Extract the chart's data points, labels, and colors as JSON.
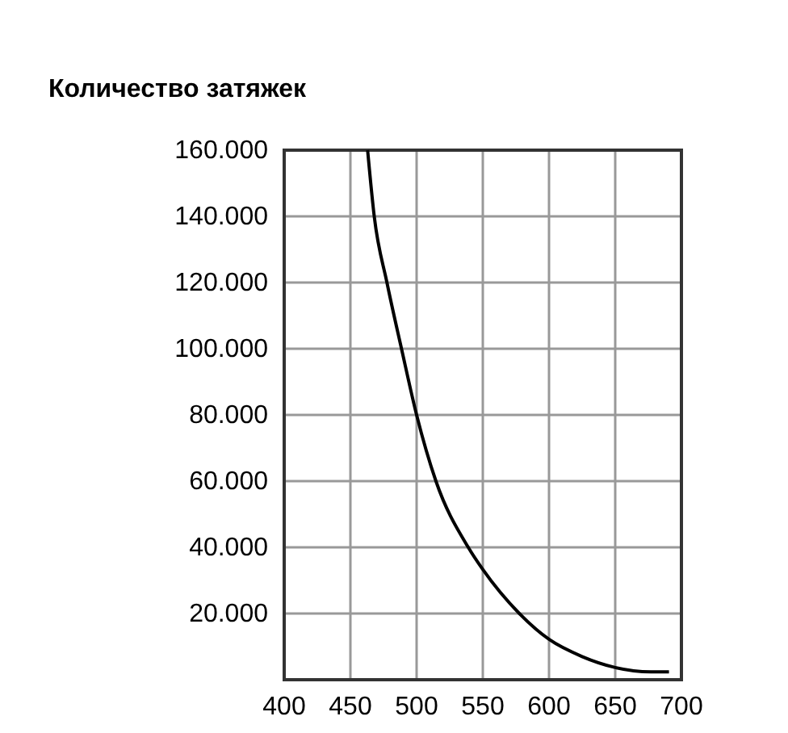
{
  "chart_data": {
    "type": "line",
    "title": "Количество затяжек",
    "x": [
      463,
      468,
      477.6,
      488.6,
      500,
      514.6,
      539,
      550,
      577.6,
      600,
      625,
      650,
      677,
      690.6
    ],
    "series": [
      {
        "color": "#000000",
        "values": [
          160000,
          140000,
          120000,
          100000,
          80000,
          60000,
          40000,
          33300,
          20000,
          12200,
          7000,
          3700,
          2400,
          2400
        ]
      }
    ],
    "xlim": [
      400,
      700
    ],
    "xticks": [
      400,
      450,
      500,
      550,
      600,
      650,
      700
    ],
    "ylim": [
      0,
      160000
    ],
    "yticks": [
      {
        "value": 0,
        "label": null
      },
      {
        "value": 20000,
        "label": "20.000"
      },
      {
        "value": 40000,
        "label": "40.000"
      },
      {
        "value": 60000,
        "label": "60.000"
      },
      {
        "value": 80000,
        "label": "80.000"
      },
      {
        "value": 100000,
        "label": "100.000"
      },
      {
        "value": 120000,
        "label": "120.000"
      },
      {
        "value": 140000,
        "label": "140.000"
      },
      {
        "value": 160000,
        "label": "160.000"
      }
    ],
    "grid": true,
    "line_style": "solid",
    "marker": "none"
  }
}
